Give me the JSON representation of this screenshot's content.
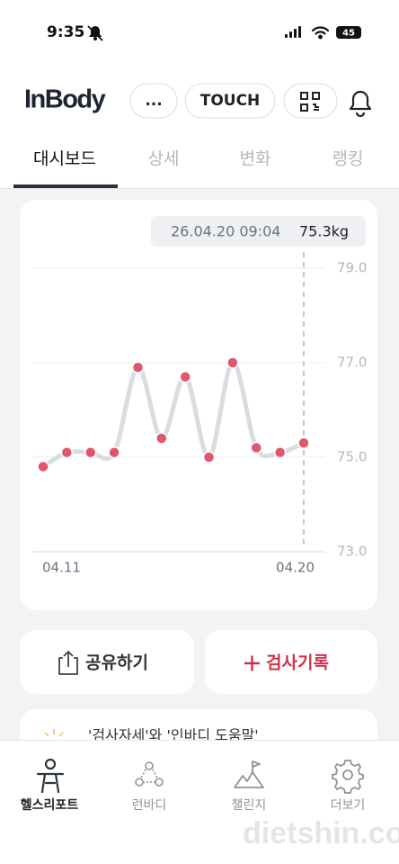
{
  "status_bar": {
    "time": "9:35",
    "battery": "45"
  },
  "header": {
    "logo": "InBody",
    "more_button": "...",
    "touch_button": "TOUCH"
  },
  "tabs": [
    "대시보드",
    "상세",
    "변화",
    "랭킹"
  ],
  "chart_data": {
    "type": "line",
    "tooltip": {
      "date": "26.04.20 09:04",
      "value": "75.3kg"
    },
    "categories": [
      "04.11",
      null,
      null,
      null,
      null,
      null,
      null,
      null,
      null,
      null,
      null,
      "04.20"
    ],
    "values": [
      74.8,
      75.1,
      75.1,
      75.1,
      76.9,
      75.4,
      76.7,
      75.0,
      77.0,
      75.2,
      75.1,
      75.3
    ],
    "color": "#e0566b",
    "line_color": "#d9dce1",
    "ylim": [
      73,
      79
    ],
    "yticks": [
      {
        "value": 73,
        "label": "73.0"
      },
      {
        "value": 75,
        "label": "75.0"
      },
      {
        "value": 77,
        "label": "77.0"
      },
      {
        "value": 79,
        "label": "79.0"
      }
    ],
    "grid": true
  },
  "actions": {
    "share": "공유하기",
    "record": "검사기록"
  },
  "tip_card": "'검사자세'와 '인바디 도움말'",
  "bottom_nav": [
    "헬스리포트",
    "런바디",
    "챌린지",
    "더보기"
  ],
  "watermark": "dietshin.com"
}
